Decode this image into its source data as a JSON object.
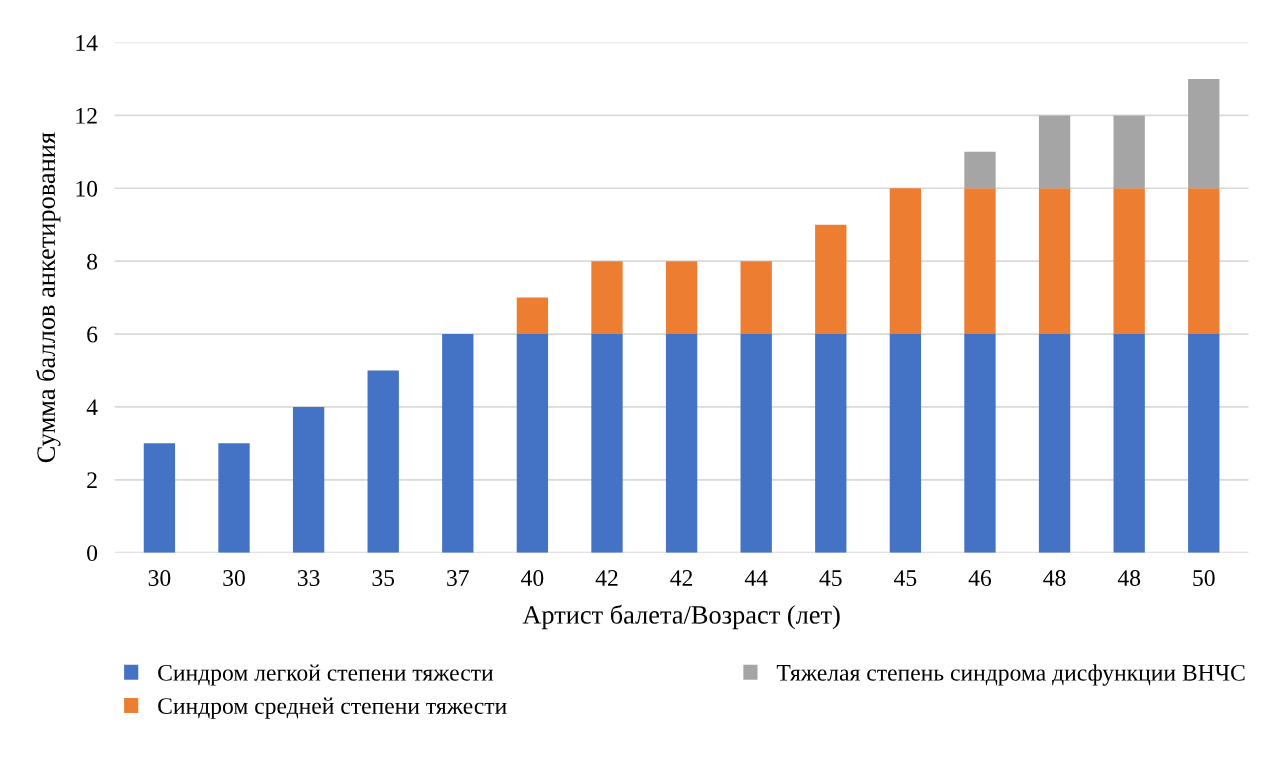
{
  "chart_data": {
    "type": "bar",
    "stacked": true,
    "xlabel": "Артист балета/Возраст (лет)",
    "ylabel": "Сумма баллов анкетирования",
    "categories": [
      "30",
      "30",
      "33",
      "35",
      "37",
      "40",
      "42",
      "42",
      "44",
      "45",
      "45",
      "46",
      "48",
      "48",
      "50"
    ],
    "series": [
      {
        "name": "Синдром легкой степени тяжести",
        "color": "#4472c4",
        "values": [
          3,
          3,
          4,
          5,
          6,
          6,
          6,
          6,
          6,
          6,
          6,
          6,
          6,
          6,
          6
        ]
      },
      {
        "name": "Синдром средней степени тяжести",
        "color": "#ed7d31",
        "values": [
          null,
          null,
          null,
          null,
          null,
          1,
          2,
          2,
          2,
          3,
          4,
          4,
          4,
          4,
          4
        ]
      },
      {
        "name": "Тяжелая степень синдрома дисфункции ВНЧС",
        "color": "#a5a5a5",
        "values": [
          null,
          null,
          null,
          null,
          null,
          null,
          null,
          null,
          null,
          null,
          null,
          1,
          2,
          2,
          3
        ]
      }
    ],
    "ylim": [
      0,
      14
    ],
    "yticks": [
      0,
      2,
      4,
      6,
      8,
      10,
      12,
      14
    ],
    "grid": "y",
    "legend": "bottom"
  }
}
